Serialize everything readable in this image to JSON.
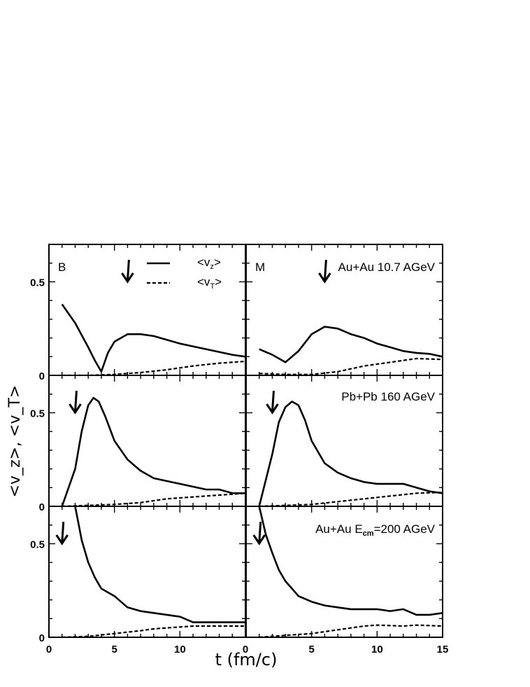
{
  "chart_data": {
    "type": "line",
    "xlabel": "t  (fm/c)",
    "ylabel": "<v_z>, <v_T>",
    "legend": {
      "placement": "top-left panel, upper-center",
      "entries": [
        {
          "label": "<v",
          "sub": "z",
          "close": ">",
          "style": "solid"
        },
        {
          "label": "<v",
          "sub": "T",
          "close": ">",
          "style": "dashed"
        }
      ]
    },
    "panel_x_ticks": {
      "left": [
        0,
        5,
        10,
        15
      ],
      "right": [
        0,
        5,
        10,
        15
      ]
    },
    "panel_x_tick_labels": {
      "left": [
        "0",
        "5",
        "10",
        "0"
      ],
      "right": [
        "",
        "5",
        "10",
        "15"
      ]
    },
    "panels": [
      {
        "row": 0,
        "col": 0,
        "xlim": [
          0,
          15
        ],
        "ylim": [
          0,
          0.7
        ],
        "label": "B",
        "ytick_labels": [
          {
            "v": 0,
            "t": "0"
          },
          {
            "v": 0.5,
            "t": "0.5"
          }
        ],
        "arrow_t": 6,
        "series": [
          {
            "style": "solid",
            "x": [
              1,
              2,
              3,
              3.5,
              4,
              4.5,
              5,
              6,
              7,
              8,
              10,
              12,
              14,
              15
            ],
            "y": [
              0.38,
              0.28,
              0.15,
              0.08,
              0.02,
              0.12,
              0.18,
              0.22,
              0.22,
              0.21,
              0.17,
              0.14,
              0.11,
              0.1
            ]
          },
          {
            "style": "dashed",
            "x": [
              1,
              3,
              5,
              7,
              9,
              11,
              13,
              15
            ],
            "y": [
              0.0,
              0.0,
              0.005,
              0.015,
              0.03,
              0.05,
              0.065,
              0.075
            ]
          }
        ]
      },
      {
        "row": 0,
        "col": 1,
        "xlim": [
          0,
          15
        ],
        "ylim": [
          0,
          0.7
        ],
        "label": "M",
        "title": "Au+Au 10.7 AGeV",
        "ytick_labels": [],
        "arrow_t": 6,
        "series": [
          {
            "style": "solid",
            "x": [
              1,
              2,
              3,
              4,
              5,
              6,
              7,
              8,
              9,
              10,
              11,
              12,
              13,
              14,
              15
            ],
            "y": [
              0.14,
              0.11,
              0.07,
              0.13,
              0.22,
              0.26,
              0.25,
              0.22,
              0.2,
              0.17,
              0.15,
              0.13,
              0.12,
              0.115,
              0.1
            ]
          },
          {
            "style": "dashed",
            "x": [
              1,
              3,
              5,
              7,
              9,
              11,
              13,
              15
            ],
            "y": [
              0.01,
              0.005,
              0.005,
              0.02,
              0.05,
              0.07,
              0.09,
              0.085
            ]
          }
        ]
      },
      {
        "row": 1,
        "col": 0,
        "xlim": [
          0,
          15
        ],
        "ylim": [
          0,
          0.7
        ],
        "ytick_labels": [
          {
            "v": 0,
            "t": "0"
          },
          {
            "v": 0.5,
            "t": "0.5"
          }
        ],
        "arrow_t": 2,
        "series": [
          {
            "style": "solid",
            "x": [
              1,
              2,
              2.5,
              3,
              3.4,
              3.8,
              4.3,
              5,
              6,
              7,
              8,
              10,
              12,
              13,
              14,
              15
            ],
            "y": [
              0.0,
              0.2,
              0.4,
              0.54,
              0.58,
              0.56,
              0.48,
              0.35,
              0.25,
              0.19,
              0.15,
              0.12,
              0.09,
              0.09,
              0.07,
              0.07
            ]
          },
          {
            "style": "dashed",
            "x": [
              1,
              3,
              5,
              7,
              9,
              11,
              13,
              15
            ],
            "y": [
              0.0,
              0.005,
              0.01,
              0.02,
              0.04,
              0.05,
              0.06,
              0.07
            ]
          }
        ]
      },
      {
        "row": 1,
        "col": 1,
        "xlim": [
          0,
          15
        ],
        "ylim": [
          0,
          0.7
        ],
        "title": "Pb+Pb 160 AGeV",
        "ytick_labels": [],
        "arrow_t": 2,
        "series": [
          {
            "style": "solid",
            "x": [
              1,
              2,
              2.5,
              3,
              3.5,
              4,
              4.5,
              5,
              6,
              7,
              8,
              9,
              10,
              12,
              13,
              14,
              15
            ],
            "y": [
              0.0,
              0.28,
              0.45,
              0.53,
              0.56,
              0.54,
              0.46,
              0.35,
              0.23,
              0.18,
              0.15,
              0.13,
              0.12,
              0.12,
              0.1,
              0.08,
              0.07
            ]
          },
          {
            "style": "dashed",
            "x": [
              1,
              3,
              5,
              7,
              9,
              11,
              13,
              15
            ],
            "y": [
              0.0,
              0.005,
              0.01,
              0.025,
              0.04,
              0.055,
              0.07,
              0.075
            ]
          }
        ]
      },
      {
        "row": 2,
        "col": 0,
        "xlim": [
          0,
          15
        ],
        "ylim": [
          0,
          0.7
        ],
        "ytick_labels": [
          {
            "v": 0,
            "t": "0"
          },
          {
            "v": 0.5,
            "t": "0.5"
          }
        ],
        "arrow_t": 1,
        "series": [
          {
            "style": "solid",
            "x": [
              2,
              2.5,
              3,
              3.5,
              4,
              5,
              5.5,
              6,
              7,
              8,
              9,
              10,
              11,
              12,
              13,
              15
            ],
            "y": [
              0.7,
              0.52,
              0.4,
              0.32,
              0.26,
              0.22,
              0.19,
              0.16,
              0.14,
              0.13,
              0.12,
              0.11,
              0.08,
              0.08,
              0.08,
              0.08
            ]
          },
          {
            "style": "dashed",
            "x": [
              1,
              3,
              5,
              7,
              8,
              9,
              11,
              13,
              15
            ],
            "y": [
              0.0,
              0.005,
              0.02,
              0.035,
              0.045,
              0.05,
              0.06,
              0.06,
              0.06
            ]
          }
        ]
      },
      {
        "row": 2,
        "col": 1,
        "xlim": [
          0,
          15
        ],
        "ylim": [
          0,
          0.7
        ],
        "title_parts": [
          "Au+Au E",
          "cm",
          "=200 AGeV"
        ],
        "ytick_labels": [],
        "arrow_t": 1,
        "series": [
          {
            "style": "solid",
            "x": [
              1,
              1.5,
              2,
              2.5,
              3,
              3.5,
              4,
              5,
              6,
              7,
              8,
              9,
              10,
              11,
              12,
              13,
              14,
              15
            ],
            "y": [
              0.7,
              0.55,
              0.45,
              0.36,
              0.3,
              0.26,
              0.22,
              0.19,
              0.17,
              0.16,
              0.15,
              0.15,
              0.15,
              0.14,
              0.15,
              0.12,
              0.12,
              0.13
            ]
          },
          {
            "style": "dashed",
            "x": [
              1,
              3,
              5,
              7,
              9,
              10,
              12,
              13,
              15
            ],
            "y": [
              0.0,
              0.01,
              0.02,
              0.04,
              0.06,
              0.065,
              0.06,
              0.065,
              0.06
            ]
          }
        ]
      }
    ]
  }
}
